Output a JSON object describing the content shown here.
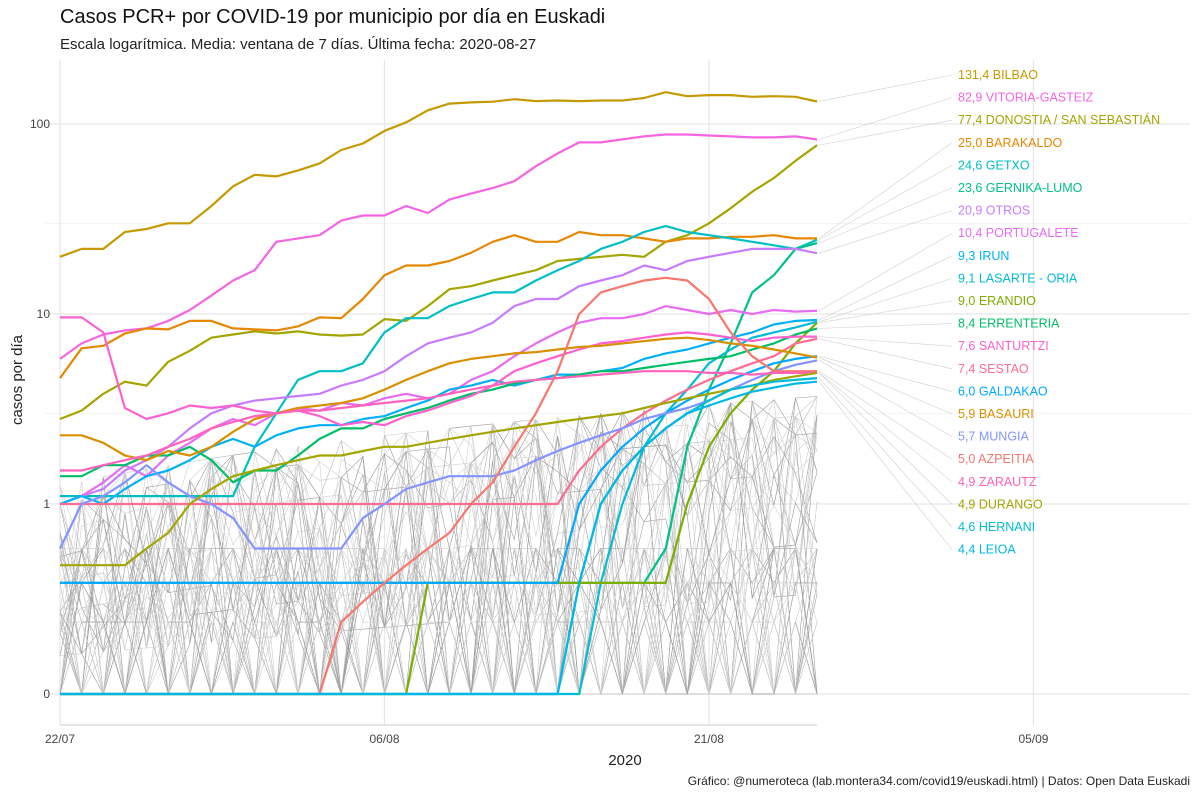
{
  "title": "Casos PCR+ por COVID-19 por municipio por día en Euskadi",
  "subtitle": "Escala logarítmica. Media: ventana de 7 días. Última fecha: 2020-08-27",
  "caption": "Gráfico: @numeroteca (lab.montera34.com/covid19/euskadi.html) | Datos: Open Data Euskadi",
  "chart_data": {
    "type": "line",
    "title": "Casos PCR+ por COVID-19 por municipio por día en Euskadi",
    "subtitle": "Escala logarítmica. Media: ventana de 7 días. Última fecha: 2020-08-27",
    "xlabel": "2020",
    "ylabel": "casos por día",
    "y_scale": "log (pseudo-log, 0 shown)",
    "x_range": [
      "2020-07-22",
      "2020-09-09"
    ],
    "x_ticks": [
      "22/07",
      "06/08",
      "21/08",
      "05/09"
    ],
    "y_ticks": [
      "0",
      "1",
      "10",
      "100"
    ],
    "grid": true,
    "legend": "direct labels at right end of lines",
    "dates_start": "2020-07-22",
    "dates_end": "2020-08-27",
    "background_series_note": "many other municipalities drawn as thin grey lines",
    "series": [
      {
        "name": "BILBAO",
        "label": "131,4 BILBAO",
        "color": "#c49a00",
        "values": [
          20,
          22,
          22,
          27,
          28,
          30,
          30,
          37,
          47,
          54,
          53,
          57,
          62,
          73,
          79,
          92,
          102,
          118,
          128,
          130,
          131,
          135,
          132,
          133,
          132,
          133,
          133,
          137,
          147,
          140,
          142,
          142,
          139,
          140,
          139,
          131.4
        ]
      },
      {
        "name": "VITORIA-GASTEIZ",
        "label": "82,9 VITORIA-GASTEIZ",
        "color": "#f564e3",
        "values": [
          5.8,
          7,
          7.8,
          8.2,
          8.4,
          9.2,
          10.5,
          12.5,
          15,
          17,
          24,
          25,
          26,
          31,
          33,
          33,
          37,
          34,
          40,
          43,
          46,
          50,
          60,
          70,
          80,
          80,
          83,
          86,
          88,
          88,
          87,
          86,
          85,
          85,
          86,
          82.9
        ]
      },
      {
        "name": "DONOSTIA / SAN SEBASTIÁN",
        "label": "77,4 DONOSTIA / SAN SEBASTIÁN",
        "color": "#a3a500",
        "values": [
          2.8,
          3.1,
          3.8,
          4.4,
          4.2,
          5.6,
          6.4,
          7.5,
          7.8,
          8.1,
          7.9,
          8.1,
          7.8,
          7.7,
          7.8,
          9.4,
          9.2,
          11,
          13.5,
          14,
          15,
          16,
          17,
          19,
          19.5,
          20,
          20.5,
          20,
          24,
          26,
          30,
          36,
          44,
          52,
          64,
          77.4
        ]
      },
      {
        "name": "BARAKALDO",
        "label": "25,0 BARAKALDO",
        "color": "#e58700",
        "values": [
          4.6,
          6.6,
          6.8,
          7.9,
          8.4,
          8.3,
          9.2,
          9.2,
          8.4,
          8.3,
          8.2,
          8.6,
          9.6,
          9.5,
          12,
          16,
          18,
          18,
          19,
          21,
          24,
          26,
          24,
          24,
          27,
          26,
          26,
          25,
          24,
          25,
          25,
          25.5,
          25.5,
          26,
          25,
          25.0
        ]
      },
      {
        "name": "GETXO",
        "label": "24,6 GETXO",
        "color": "#00bfc4",
        "values": [
          1.1,
          1.1,
          1.1,
          1.1,
          1.1,
          1.1,
          1.1,
          1.1,
          1.1,
          2,
          3,
          4.5,
          5,
          5,
          5.5,
          8,
          9.5,
          9.5,
          11,
          12,
          13,
          13,
          15,
          17,
          19,
          22,
          24,
          27,
          29,
          27,
          26,
          25,
          24,
          23,
          22,
          24.6
        ]
      },
      {
        "name": "GERNIKA-LUMO",
        "label": "23,6 GERNIKA-LUMO",
        "color": "#00c08b",
        "values": [
          0.5,
          0.5,
          0.5,
          0.5,
          0.5,
          0.5,
          0.5,
          0.5,
          0.5,
          0.5,
          0.5,
          0.5,
          0.5,
          0.5,
          0.5,
          0.5,
          0.5,
          0.5,
          0.5,
          0.5,
          0.5,
          0.5,
          0.5,
          0.5,
          0.5,
          0.5,
          0.5,
          0.5,
          0.7,
          2,
          4,
          7,
          13,
          16,
          22,
          23.6
        ]
      },
      {
        "name": "OTROS",
        "label": "20,9 OTROS",
        "color": "#c77cff",
        "values": [
          1,
          1.1,
          1.2,
          1.5,
          1.7,
          2,
          2.5,
          3,
          3.3,
          3.5,
          3.6,
          3.7,
          3.8,
          4.2,
          4.5,
          5,
          6,
          7,
          7.5,
          8,
          9,
          11,
          12,
          12,
          14,
          15,
          16,
          18,
          17,
          19,
          20,
          21,
          22,
          22,
          22,
          20.9
        ]
      },
      {
        "name": "PORTUGALETE",
        "label": "10,4 PORTUGALETE",
        "color": "#e76bf3",
        "values": [
          1,
          1.1,
          1.3,
          1.6,
          1.4,
          1.8,
          2.1,
          2.5,
          2.8,
          2.6,
          3,
          3.2,
          3.1,
          3.4,
          3.3,
          3.6,
          3.8,
          3.6,
          3.8,
          4.5,
          5,
          6,
          7,
          8,
          9,
          9.5,
          9.5,
          10,
          11,
          10.5,
          10,
          10.5,
          10,
          10.5,
          10.3,
          10.4
        ]
      },
      {
        "name": "IRUN",
        "label": "9,3 IRUN",
        "color": "#00b0f6",
        "values": [
          1,
          1.1,
          1,
          1.2,
          1.4,
          1.5,
          1.7,
          2,
          2.2,
          2,
          2.3,
          2.5,
          2.6,
          2.6,
          2.8,
          2.9,
          3.2,
          3.5,
          4,
          4.2,
          4.5,
          4.2,
          4.5,
          4.8,
          4.8,
          5,
          5.2,
          5.8,
          6.2,
          6.5,
          7,
          7.5,
          8,
          8.8,
          9.2,
          9.3
        ]
      },
      {
        "name": "LASARTE - ORIA",
        "label": "9,1 LASARTE - ORIA",
        "color": "#00bcd8",
        "values": [
          0,
          0,
          0,
          0,
          0,
          0,
          0,
          0,
          0,
          0,
          0,
          0,
          0,
          0,
          0,
          0,
          0,
          0,
          0,
          0,
          0,
          0,
          0,
          0,
          0,
          0.5,
          1,
          2,
          3,
          4,
          5.5,
          6.5,
          7.5,
          8,
          8.5,
          9.1
        ]
      },
      {
        "name": "ERANDIO",
        "label": "9,0 ERANDIO",
        "color": "#7cae00",
        "values": [
          0,
          0,
          0,
          0,
          0,
          0,
          0,
          0,
          0,
          0,
          0,
          0,
          0,
          0,
          0,
          0,
          0,
          0.5,
          0.5,
          0.5,
          0.5,
          0.5,
          0.5,
          0.5,
          0.5,
          0.5,
          0.5,
          0.5,
          0.5,
          1,
          2,
          3,
          4,
          5,
          7,
          9.0
        ]
      },
      {
        "name": "ERRENTERIA",
        "label": "8,4 ERRENTERIA",
        "color": "#00be67",
        "values": [
          1.4,
          1.4,
          1.6,
          1.6,
          1.8,
          1.8,
          2,
          1.7,
          1.3,
          1.5,
          1.5,
          1.8,
          2.2,
          2.5,
          2.5,
          2.8,
          3,
          3.2,
          3.5,
          3.8,
          4,
          4.3,
          4.5,
          4.6,
          4.8,
          5,
          5,
          5.2,
          5.4,
          5.6,
          5.8,
          6,
          6.5,
          7,
          7.8,
          8.4
        ]
      },
      {
        "name": "SANTURTZI",
        "label": "7,6 SANTURTZI",
        "color": "#fd61d1",
        "values": [
          9.6,
          9.6,
          8,
          3.2,
          2.8,
          3,
          3.3,
          3.2,
          3.3,
          3.1,
          3,
          3.1,
          2.9,
          2.6,
          2.7,
          2.6,
          2.9,
          3.1,
          3.4,
          3.7,
          4.2,
          5,
          5.5,
          6,
          6.5,
          7,
          7.2,
          7.5,
          7.8,
          8,
          7.8,
          7.5,
          7.2,
          7.5,
          7.6,
          7.6
        ]
      },
      {
        "name": "SESTAO",
        "label": "7,4 SESTAO",
        "color": "#ff6c91",
        "values": [
          1,
          1,
          1,
          1,
          1,
          1,
          1,
          1,
          1,
          1,
          1,
          1,
          1,
          1,
          1,
          1,
          1,
          1,
          1,
          1,
          1,
          1,
          1,
          1,
          1.5,
          2,
          2.5,
          3,
          3.5,
          4,
          4.5,
          5,
          5.5,
          6,
          7,
          7.4
        ]
      },
      {
        "name": "GALDAKAO",
        "label": "6,0 GALDAKAO",
        "color": "#00a9ff",
        "values": [
          0.5,
          0.5,
          0.5,
          0.5,
          0.5,
          0.5,
          0.5,
          0.5,
          0.5,
          0.5,
          0.5,
          0.5,
          0.5,
          0.5,
          0.5,
          0.5,
          0.5,
          0.5,
          0.5,
          0.5,
          0.5,
          0.5,
          0.5,
          0.5,
          1,
          1.5,
          2,
          2.5,
          3,
          3.5,
          4,
          4.5,
          5,
          5.5,
          5.8,
          6.0
        ]
      },
      {
        "name": "BASAURI",
        "label": "5,9 BASAURI",
        "color": "#d89000",
        "values": [
          2.3,
          2.3,
          2.1,
          1.8,
          1.7,
          1.9,
          1.8,
          2,
          2.4,
          2.8,
          3,
          3.2,
          3.3,
          3.4,
          3.6,
          4,
          4.5,
          5,
          5.5,
          5.8,
          6,
          6.2,
          6.3,
          6.5,
          6.7,
          6.8,
          7,
          7.2,
          7.4,
          7.5,
          7.3,
          7,
          6.8,
          6.5,
          6.2,
          5.9
        ]
      },
      {
        "name": "MUNGIA",
        "label": "5,7 MUNGIA",
        "color": "#8494ff",
        "values": [
          0.7,
          1,
          1.1,
          1.3,
          1.6,
          1.3,
          1.1,
          1,
          0.9,
          0.7,
          0.7,
          0.7,
          0.7,
          0.7,
          0.9,
          1,
          1.2,
          1.3,
          1.4,
          1.4,
          1.4,
          1.5,
          1.7,
          1.9,
          2.1,
          2.3,
          2.5,
          2.8,
          3,
          3.2,
          3.5,
          4,
          4.5,
          5,
          5.4,
          5.7
        ]
      },
      {
        "name": "AZPEITIA",
        "label": "5,0 AZPEITIA",
        "color": "#f8766d",
        "values": [
          0,
          0,
          0,
          0,
          0,
          0,
          0,
          0,
          0,
          0,
          0,
          0,
          0,
          0.3,
          0.4,
          0.5,
          0.6,
          0.7,
          0.8,
          1,
          1.3,
          2,
          3,
          5,
          10,
          13,
          14,
          15,
          15.5,
          15,
          12,
          8,
          6,
          5,
          5,
          5.0
        ]
      },
      {
        "name": "ZARAUTZ",
        "label": "4,9 ZARAUTZ",
        "color": "#ff62bc",
        "values": [
          1.5,
          1.5,
          1.6,
          1.7,
          1.8,
          2,
          2.2,
          2.5,
          2.7,
          2.9,
          3,
          3.1,
          3.1,
          3.2,
          3.3,
          3.4,
          3.5,
          3.6,
          3.8,
          4,
          4.2,
          4.4,
          4.5,
          4.6,
          4.7,
          4.8,
          4.9,
          5,
          5,
          5,
          4.9,
          4.9,
          4.8,
          4.9,
          4.9,
          4.9
        ]
      },
      {
        "name": "DURANGO",
        "label": "4,9 DURANGO",
        "color": "#a3a500",
        "values": [
          0.6,
          0.6,
          0.6,
          0.6,
          0.7,
          0.8,
          1,
          1.2,
          1.4,
          1.5,
          1.6,
          1.7,
          1.8,
          1.8,
          1.9,
          2,
          2,
          2.1,
          2.2,
          2.3,
          2.4,
          2.5,
          2.6,
          2.7,
          2.8,
          2.9,
          3,
          3.2,
          3.4,
          3.6,
          3.8,
          4,
          4.2,
          4.5,
          4.7,
          4.9
        ]
      },
      {
        "name": "HERNANI",
        "label": "4,6 HERNANI",
        "color": "#00bcd8",
        "values": [
          0,
          0,
          0,
          0,
          0,
          0,
          0,
          0,
          0,
          0,
          0,
          0,
          0,
          0,
          0,
          0,
          0,
          0,
          0,
          0,
          0,
          0,
          0,
          0,
          0.5,
          1,
          1.5,
          2,
          2.5,
          3,
          3.5,
          4,
          4.2,
          4.4,
          4.5,
          4.6
        ]
      },
      {
        "name": "LEIOA",
        "label": "4,4 LEIOA",
        "color": "#00b8e7",
        "values": [
          0,
          0,
          0,
          0,
          0,
          0,
          0,
          0,
          0,
          0,
          0,
          0,
          0,
          0,
          0,
          0,
          0,
          0,
          0,
          0,
          0,
          0,
          0,
          0,
          0.5,
          1,
          1.5,
          2,
          2.5,
          3,
          3.3,
          3.6,
          3.9,
          4.1,
          4.3,
          4.4
        ]
      }
    ]
  }
}
